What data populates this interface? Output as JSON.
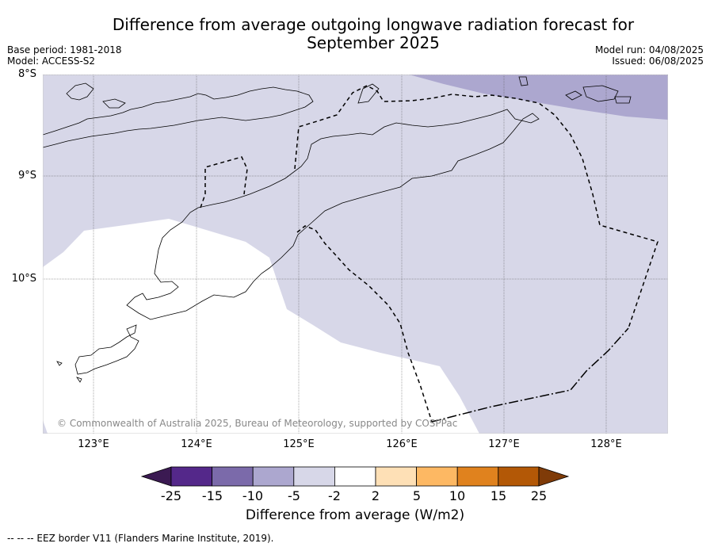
{
  "title_line1": "Difference from average outgoing longwave radiation forecast for",
  "title_line2": "September 2025",
  "base_period": "Base period: 1981-2018",
  "model": "Model: ACCESS-S2",
  "model_run": "Model run: 04/08/2025",
  "issued": "Issued: 06/08/2025",
  "lat_labels": [
    "8°S",
    "9°S",
    "10°S"
  ],
  "lon_labels": [
    "123°E",
    "124°E",
    "125°E",
    "126°E",
    "127°E",
    "128°E"
  ],
  "copyright": "© Commonwealth of Australia 2025, Bureau of Meteorology, supported by COSPPac",
  "colorbar": {
    "ticks": [
      "-25",
      "-15",
      "-10",
      "-5",
      "-2",
      "2",
      "5",
      "10",
      "15",
      "25"
    ],
    "colors": [
      "#3b1a52",
      "#54288a",
      "#7b6aaa",
      "#aca7cf",
      "#d7d7e8",
      "#ffffff",
      "#fee0b6",
      "#fdb863",
      "#e0821e",
      "#b35806",
      "#7f3b08"
    ],
    "label": "Difference from average (W/m2)"
  },
  "footnote": "--  --  -- EEZ border V11 (Flanders Marine Institute, 2019)."
}
